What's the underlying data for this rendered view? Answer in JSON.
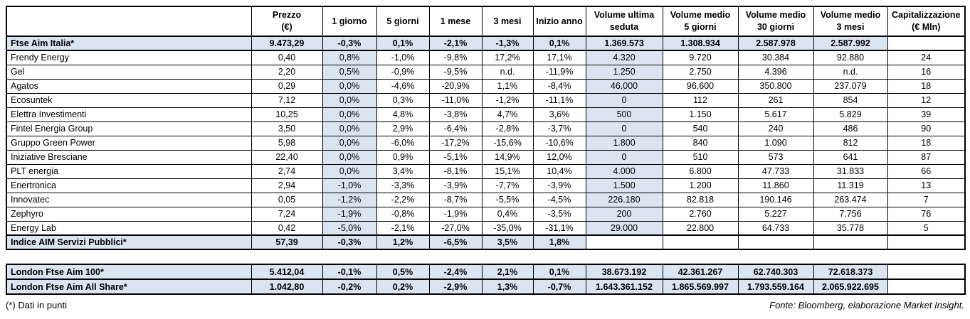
{
  "main_table": {
    "headers": [
      {
        "line1": "",
        "line2": ""
      },
      {
        "line1": "Prezzo",
        "line2": "(€)"
      },
      {
        "line1": "1 giorno",
        "line2": ""
      },
      {
        "line1": "5 giorni",
        "line2": ""
      },
      {
        "line1": "1 mese",
        "line2": ""
      },
      {
        "line1": "3 mesi",
        "line2": ""
      },
      {
        "line1": "Inizio anno",
        "line2": ""
      },
      {
        "line1": "Volume ultima",
        "line2": "seduta"
      },
      {
        "line1": "Volume medio",
        "line2": "5 giorni"
      },
      {
        "line1": "Volume medio",
        "line2": "30 giorni"
      },
      {
        "line1": "Volume medio",
        "line2": "3 mesi"
      },
      {
        "line1": "Capitalizzazione",
        "line2": "(€ Mln)"
      }
    ],
    "rows": [
      {
        "name": "Ftse Aim Italia*",
        "index": true,
        "values": [
          "9.473,29",
          "-0,3%",
          "0,1%",
          "-2,1%",
          "-1,3%",
          "0,1%",
          "1.369.573",
          "1.308.934",
          "2.587.978",
          "2.587.992",
          ""
        ]
      },
      {
        "name": "Frendy Energy",
        "index": false,
        "values": [
          "0,40",
          "0,8%",
          "-1,0%",
          "-9,8%",
          "17,2%",
          "17,1%",
          "4.320",
          "9.720",
          "30.384",
          "92.880",
          "24"
        ]
      },
      {
        "name": "Gel",
        "index": false,
        "values": [
          "2,20",
          "0,5%",
          "-0,9%",
          "-9,5%",
          "n.d.",
          "-11,9%",
          "1.250",
          "2.750",
          "4.396",
          "n.d.",
          "16"
        ]
      },
      {
        "name": "Agatos",
        "index": false,
        "values": [
          "0,29",
          "0,0%",
          "-4,6%",
          "-20,9%",
          "1,1%",
          "-8,4%",
          "46.000",
          "96.600",
          "350.800",
          "237.079",
          "18"
        ]
      },
      {
        "name": "Ecosuntek",
        "index": false,
        "values": [
          "7,12",
          "0,0%",
          "0,3%",
          "-11,0%",
          "-1,2%",
          "-11,1%",
          "0",
          "112",
          "261",
          "854",
          "12"
        ]
      },
      {
        "name": "Elettra Investimenti",
        "index": false,
        "values": [
          "10,25",
          "0,0%",
          "4,8%",
          "-3,8%",
          "4,7%",
          "3,6%",
          "500",
          "1.150",
          "5.617",
          "5.829",
          "39"
        ]
      },
      {
        "name": "Fintel Energia Group",
        "index": false,
        "values": [
          "3,50",
          "0,0%",
          "2,9%",
          "-6,4%",
          "-2,8%",
          "-3,7%",
          "0",
          "540",
          "240",
          "486",
          "90"
        ]
      },
      {
        "name": "Gruppo Green Power",
        "index": false,
        "values": [
          "5,98",
          "0,0%",
          "-6,0%",
          "-17,2%",
          "-15,6%",
          "-10,6%",
          "1.800",
          "840",
          "1.090",
          "812",
          "18"
        ]
      },
      {
        "name": "Iniziative Bresciane",
        "index": false,
        "values": [
          "22,40",
          "0,0%",
          "0,9%",
          "-5,1%",
          "14,9%",
          "12,0%",
          "0",
          "510",
          "573",
          "641",
          "87"
        ]
      },
      {
        "name": "PLT energia",
        "index": false,
        "values": [
          "2,74",
          "0,0%",
          "3,4%",
          "-8,1%",
          "15,1%",
          "10,4%",
          "4.000",
          "6.800",
          "47.733",
          "31.833",
          "66"
        ]
      },
      {
        "name": "Enertronica",
        "index": false,
        "values": [
          "2,94",
          "-1,0%",
          "-3,3%",
          "-3,9%",
          "-7,7%",
          "-3,9%",
          "1.500",
          "1.200",
          "11.860",
          "11.319",
          "13"
        ]
      },
      {
        "name": "Innovatec",
        "index": false,
        "values": [
          "0,05",
          "-1,2%",
          "-2,2%",
          "-8,7%",
          "-5,5%",
          "-4,5%",
          "226.180",
          "82.818",
          "190.146",
          "263.474",
          "7"
        ]
      },
      {
        "name": "Zephyro",
        "index": false,
        "values": [
          "7,24",
          "-1,9%",
          "-0,8%",
          "-1,9%",
          "0,4%",
          "-3,5%",
          "200",
          "2.760",
          "5.227",
          "7.756",
          "76"
        ]
      },
      {
        "name": "Energy Lab",
        "index": false,
        "values": [
          "0,42",
          "-5,0%",
          "-2,1%",
          "-27,0%",
          "-35,0%",
          "-31,1%",
          "29.000",
          "22.800",
          "64.733",
          "35.778",
          "5"
        ]
      },
      {
        "name": "Indice AIM Servizi Pubblici*",
        "index": true,
        "values": [
          "57,39",
          "-0,3%",
          "1,2%",
          "-6,5%",
          "3,5%",
          "1,8%",
          "",
          "",
          "",
          "",
          ""
        ]
      }
    ]
  },
  "london_table": {
    "rows": [
      {
        "name": "London Ftse Aim 100*",
        "index": true,
        "values": [
          "5.412,04",
          "-0,1%",
          "0,5%",
          "-2,4%",
          "2,1%",
          "0,1%",
          "38.673.192",
          "42.361.267",
          "62.740.303",
          "72.618.373",
          ""
        ]
      },
      {
        "name": "London Ftse Aim All Share*",
        "index": true,
        "values": [
          "1.042,80",
          "-0,2%",
          "0,2%",
          "-2,9%",
          "1,3%",
          "-0,7%",
          "1.643.361.152",
          "1.865.569.997",
          "1.793.559.164",
          "2.065.922.695",
          ""
        ]
      }
    ]
  },
  "footer": {
    "note": "(*) Dati in punti",
    "source": "Fonte: Bloomberg, elaborazione Market Insight."
  },
  "colors": {
    "shade": "#dbe5f1",
    "border": "#000000"
  }
}
